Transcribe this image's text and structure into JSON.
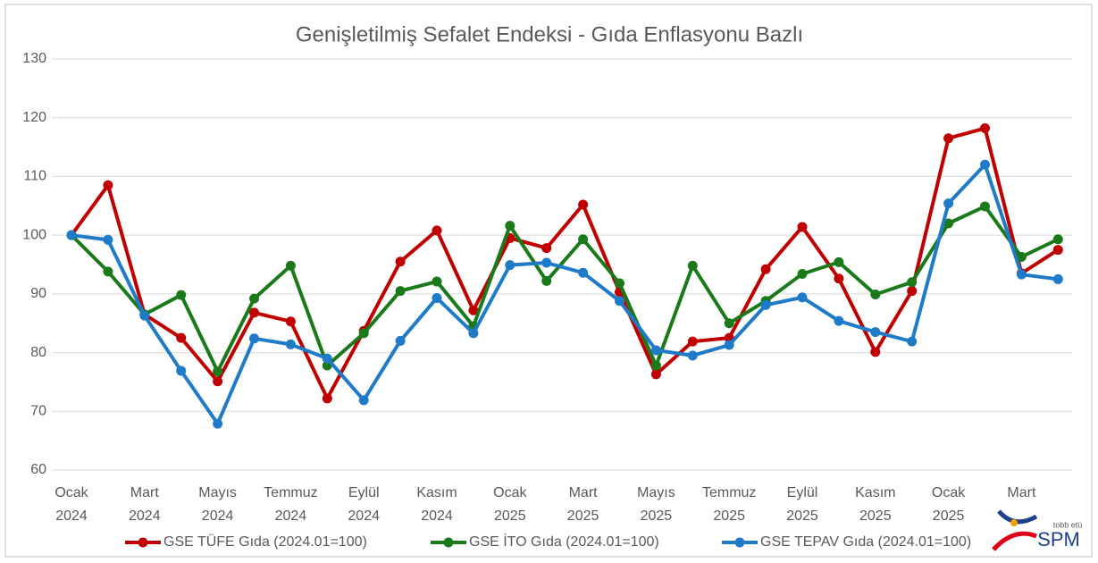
{
  "chart_data": {
    "type": "line",
    "title": "Genişletilmiş Sefalet Endeksi - Gıda Enflasyonu Bazlı",
    "categories": [
      "Ocak 2024",
      null,
      "Mart 2024",
      null,
      "Mayıs 2024",
      null,
      "Temmuz 2024",
      null,
      "Eylül 2024",
      null,
      "Kasım 2024",
      null,
      "Ocak 2025",
      null,
      "Mart 2025",
      null,
      "Mayıs 2025",
      null,
      "Temmuz 2025",
      null,
      "Eylül 2025",
      null,
      "Kasım 2025",
      null,
      "Ocak 2025",
      null,
      "Mart",
      null
    ],
    "ylim": [
      60,
      130
    ],
    "yticks": [
      60,
      70,
      80,
      90,
      100,
      110,
      120,
      130
    ],
    "grid": true,
    "legend": "bottom",
    "series": [
      {
        "name": "GSE TÜFE Gıda (2024.01=100)",
        "color": "#c00000",
        "values": [
          100,
          108.5,
          86.5,
          82.5,
          75.1,
          86.8,
          85.3,
          72.2,
          83.7,
          95.5,
          100.8,
          87.2,
          99.5,
          97.8,
          105.2,
          90.3,
          76.3,
          81.9,
          82.5,
          94.2,
          101.4,
          92.6,
          80.1,
          90.5,
          116.5,
          118.2,
          93.5,
          97.5
        ]
      },
      {
        "name": "GSE İTO Gıda (2024.01=100)",
        "color": "#1a7a1a",
        "values": [
          100,
          93.8,
          86.5,
          89.8,
          76.8,
          89.2,
          94.8,
          77.8,
          83.3,
          90.5,
          92.1,
          84.5,
          101.6,
          92.2,
          99.3,
          91.8,
          77.8,
          94.8,
          85.0,
          88.8,
          93.4,
          95.4,
          89.9,
          92.0,
          102.0,
          104.9,
          96.3,
          99.3
        ]
      },
      {
        "name": "GSE TEPAV Gıda (2024.01=100)",
        "color": "#1f7bc8",
        "values": [
          100,
          99.2,
          86.3,
          76.9,
          67.9,
          82.4,
          81.4,
          79.0,
          71.9,
          82.0,
          89.3,
          83.3,
          94.9,
          95.3,
          93.6,
          88.8,
          80.4,
          79.5,
          81.3,
          88.1,
          89.4,
          85.4,
          83.5,
          81.9,
          105.4,
          112.0,
          93.3,
          92.5
        ]
      }
    ],
    "logo": {
      "small": "tobb etü",
      "large": "SPM"
    }
  }
}
